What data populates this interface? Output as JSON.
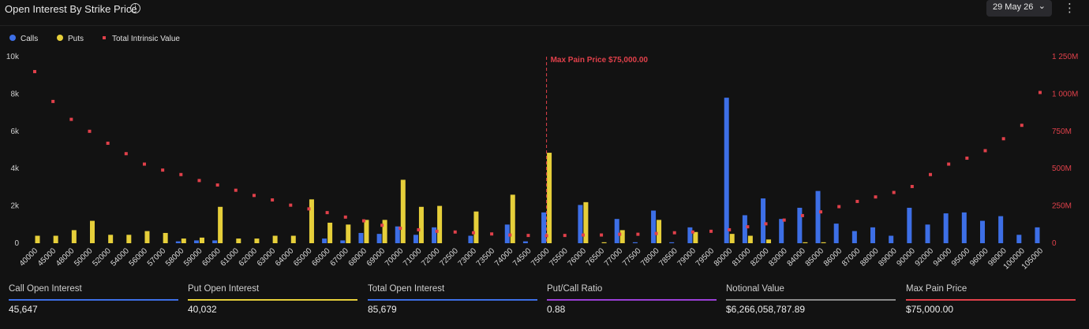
{
  "header": {
    "title": "Open Interest By Strike Price",
    "info_glyph": "i",
    "date_label": "29 May 26",
    "chevron_glyph": "⌄",
    "kebab_glyph": "⋮"
  },
  "legend": {
    "items": [
      {
        "label": "Calls",
        "color": "#3d6fe6",
        "shape": "circle"
      },
      {
        "label": "Puts",
        "color": "#e6cf3a",
        "shape": "circle"
      },
      {
        "label": "Total Intrinsic Value",
        "color": "#e0404a",
        "shape": "square"
      }
    ]
  },
  "chart_data": {
    "type": "bar",
    "categories": [
      "40000",
      "45000",
      "48000",
      "50000",
      "52000",
      "54000",
      "56000",
      "57000",
      "58000",
      "59000",
      "60000",
      "61000",
      "62000",
      "63000",
      "64000",
      "65000",
      "66000",
      "67000",
      "68000",
      "69000",
      "70000",
      "71000",
      "72000",
      "72500",
      "73000",
      "73500",
      "74000",
      "74500",
      "75000",
      "75500",
      "76000",
      "76500",
      "77000",
      "77500",
      "78000",
      "78500",
      "79000",
      "79500",
      "80000",
      "81000",
      "82000",
      "83000",
      "84000",
      "85000",
      "86000",
      "87000",
      "88000",
      "89000",
      "90000",
      "92000",
      "94000",
      "95000",
      "96000",
      "98000",
      "100000",
      "105000"
    ],
    "series": [
      {
        "name": "Calls",
        "color": "#3d6fe6",
        "values": [
          0,
          0,
          0,
          0,
          0,
          0,
          0,
          0,
          100,
          150,
          150,
          0,
          0,
          0,
          0,
          0,
          250,
          150,
          550,
          500,
          900,
          450,
          850,
          0,
          400,
          0,
          1000,
          100,
          1650,
          0,
          2050,
          0,
          1300,
          50,
          1750,
          50,
          850,
          0,
          7800,
          1500,
          2400,
          1300,
          1900,
          2800,
          1050,
          650,
          850,
          400,
          1900,
          1000,
          1600,
          1650,
          1200,
          1450,
          450,
          850
        ]
      },
      {
        "name": "Puts",
        "color": "#e6cf3a",
        "values": [
          400,
          400,
          700,
          1200,
          450,
          450,
          650,
          550,
          250,
          300,
          1950,
          250,
          250,
          400,
          400,
          2350,
          1100,
          1000,
          1250,
          1250,
          3400,
          1950,
          2000,
          0,
          1700,
          0,
          2600,
          0,
          4850,
          0,
          2200,
          50,
          700,
          0,
          1250,
          0,
          600,
          0,
          500,
          400,
          200,
          0,
          50,
          50,
          0,
          0,
          0,
          0,
          0,
          0,
          0,
          0,
          0,
          0,
          0,
          0
        ]
      },
      {
        "name": "Total Intrinsic Value",
        "color": "#e0404a",
        "axis": "right",
        "values": [
          1150000000,
          950000000,
          830000000,
          750000000,
          670000000,
          600000000,
          530000000,
          490000000,
          460000000,
          420000000,
          390000000,
          355000000,
          320000000,
          290000000,
          255000000,
          230000000,
          205000000,
          175000000,
          150000000,
          120000000,
          100000000,
          90000000,
          80000000,
          75000000,
          70000000,
          62000000,
          55000000,
          52000000,
          50000000,
          52000000,
          55000000,
          55000000,
          60000000,
          60000000,
          65000000,
          70000000,
          75000000,
          80000000,
          90000000,
          110000000,
          130000000,
          155000000,
          185000000,
          210000000,
          245000000,
          280000000,
          310000000,
          340000000,
          380000000,
          460000000,
          530000000,
          570000000,
          620000000,
          700000000,
          790000000,
          1010000000
        ]
      }
    ],
    "ylim": [
      0,
      10000
    ],
    "y_ticks": [
      "0",
      "2k",
      "4k",
      "6k",
      "8k",
      "10k"
    ],
    "y2lim": [
      0,
      1250000000
    ],
    "y2_ticks": [
      "0",
      "250M",
      "500M",
      "750M",
      "1 000M",
      "1 250M"
    ],
    "grid": false,
    "legend_position": "top-left",
    "annotation": {
      "label": "Max Pain Price $75,000.00",
      "category": "75000",
      "color": "#e0404a"
    }
  },
  "stats": [
    {
      "label": "Call Open Interest",
      "value": "45,647",
      "color": "#3d6fe6"
    },
    {
      "label": "Put Open Interest",
      "value": "40,032",
      "color": "#e6cf3a"
    },
    {
      "label": "Total Open Interest",
      "value": "85,679",
      "color": "#3d6fe6"
    },
    {
      "label": "Put/Call Ratio",
      "value": "0.88",
      "color": "#9b3fd6"
    },
    {
      "label": "Notional Value",
      "value": "$6,266,058,787.89",
      "color": "#8a8a8a"
    },
    {
      "label": "Max Pain Price",
      "value": "$75,000.00",
      "color": "#e0404a"
    }
  ]
}
